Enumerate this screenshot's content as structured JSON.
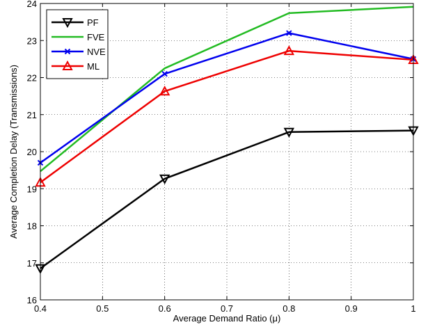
{
  "chart_data": {
    "type": "line",
    "xlabel": "Average Demand Ratio (μ)",
    "ylabel": "Average Completion Delay (Transmissions)",
    "xlim": [
      0.4,
      1.0
    ],
    "ylim": [
      16,
      24
    ],
    "xticks": [
      "0.4",
      "0.5",
      "0.6",
      "0.7",
      "0.8",
      "0.9",
      "1"
    ],
    "yticks": [
      "16",
      "17",
      "18",
      "19",
      "20",
      "21",
      "22",
      "23",
      "24"
    ],
    "grid": true,
    "legend_position": "top-left",
    "x": [
      0.4,
      0.6,
      0.8,
      1.0
    ],
    "series": [
      {
        "name": "PF",
        "color": "#000000",
        "marker": "triangle-down",
        "values": [
          16.85,
          19.27,
          20.53,
          20.57
        ]
      },
      {
        "name": "FVE",
        "color": "#22bb22",
        "marker": "none",
        "values": [
          19.47,
          22.25,
          23.74,
          23.91
        ]
      },
      {
        "name": "NVE",
        "color": "#0000ee",
        "marker": "x",
        "values": [
          19.7,
          22.1,
          23.2,
          22.5
        ]
      },
      {
        "name": "ML",
        "color": "#ee0000",
        "marker": "triangle-up",
        "values": [
          19.17,
          21.63,
          22.72,
          22.48
        ]
      }
    ]
  }
}
